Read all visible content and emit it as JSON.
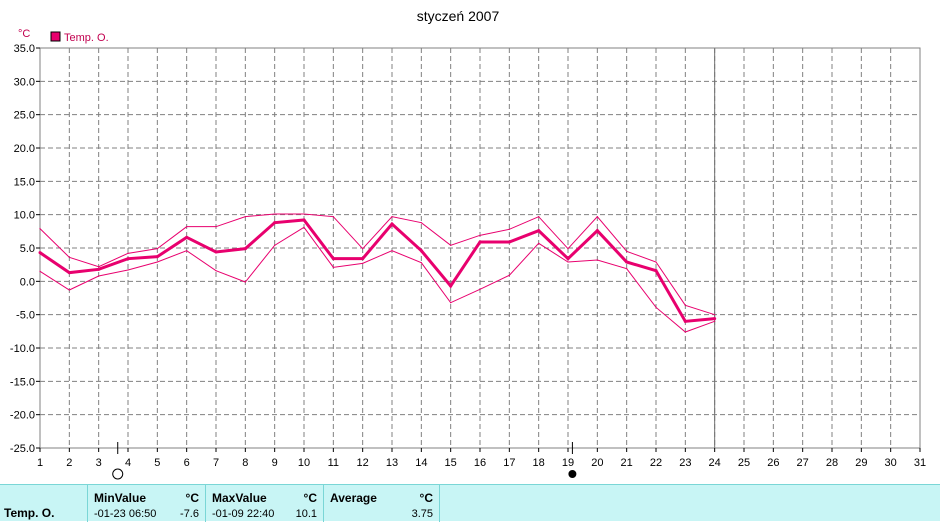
{
  "chart_data": {
    "type": "line",
    "title": "styczeń 2007",
    "y_unit": "°C",
    "ylim": [
      -25,
      35
    ],
    "y_ticks": [
      35.0,
      30.0,
      25.0,
      20.0,
      15.0,
      10.0,
      5.0,
      0.0,
      -5.0,
      -10.0,
      -15.0,
      -20.0,
      -25.0
    ],
    "y_tick_labels": [
      "35.0",
      "30.0",
      "25.0",
      "20.0",
      "15.0",
      "10.0",
      "5.0",
      "0.0",
      "-5.0",
      "-10.0",
      "-15.0",
      "-20.0",
      "-25.0"
    ],
    "xlim": [
      1,
      31
    ],
    "x_tick_labels": [
      "1",
      "2",
      "3",
      "4",
      "5",
      "6",
      "7",
      "8",
      "9",
      "10",
      "11",
      "12",
      "13",
      "14",
      "15",
      "16",
      "17",
      "18",
      "19",
      "20",
      "21",
      "22",
      "23",
      "24",
      "25",
      "26",
      "27",
      "28",
      "29",
      "30",
      "31"
    ],
    "grid": true,
    "legend": {
      "position": "top-left",
      "entries": [
        {
          "label": "Temp. O.",
          "color": "#e8006e"
        }
      ]
    },
    "marker_line_x": 24,
    "moon_phases": [
      {
        "x": 3.65,
        "phase": "full"
      },
      {
        "x": 19.15,
        "phase": "new"
      }
    ],
    "x": [
      1,
      2,
      3,
      4,
      5,
      6,
      7,
      8,
      9,
      10,
      11,
      12,
      13,
      14,
      15,
      16,
      17,
      18,
      19,
      20,
      21,
      22,
      23,
      24
    ],
    "series": [
      {
        "name": "Temp. O.",
        "role": "average",
        "color": "#e8006e",
        "values": [
          4.3,
          1.3,
          1.8,
          3.4,
          3.7,
          6.6,
          4.4,
          4.9,
          8.8,
          9.2,
          3.4,
          3.4,
          8.6,
          4.6,
          -0.7,
          5.9,
          5.9,
          7.6,
          3.4,
          7.6,
          2.9,
          1.6,
          -6.0,
          -5.6
        ]
      },
      {
        "name": "",
        "role": "max",
        "color": "#e8006e",
        "values": [
          7.9,
          3.6,
          2.2,
          4.2,
          4.9,
          8.2,
          8.2,
          9.7,
          10.1,
          10.1,
          9.7,
          4.9,
          9.7,
          8.8,
          5.4,
          6.9,
          7.8,
          9.7,
          4.9,
          9.7,
          4.5,
          2.9,
          -3.6,
          -5.0
        ]
      },
      {
        "name": "",
        "role": "min",
        "color": "#e8006e",
        "values": [
          1.5,
          -1.3,
          0.8,
          1.7,
          2.9,
          4.6,
          1.6,
          -0.1,
          5.4,
          8.1,
          2.1,
          2.7,
          4.6,
          2.8,
          -3.2,
          -1.2,
          0.9,
          5.7,
          2.9,
          3.2,
          1.9,
          -3.9,
          -7.6,
          -6.0
        ]
      }
    ]
  },
  "stats": {
    "series_name": "Temp. O.",
    "min": {
      "label": "MinValue",
      "unit": "°C",
      "date": "-01-23  06:50",
      "value": "-7.6"
    },
    "max": {
      "label": "MaxValue",
      "unit": "°C",
      "date": "-01-09  22:40",
      "value": "10.1"
    },
    "avg": {
      "label": "Average",
      "unit": "°C",
      "value": "3.75"
    }
  }
}
